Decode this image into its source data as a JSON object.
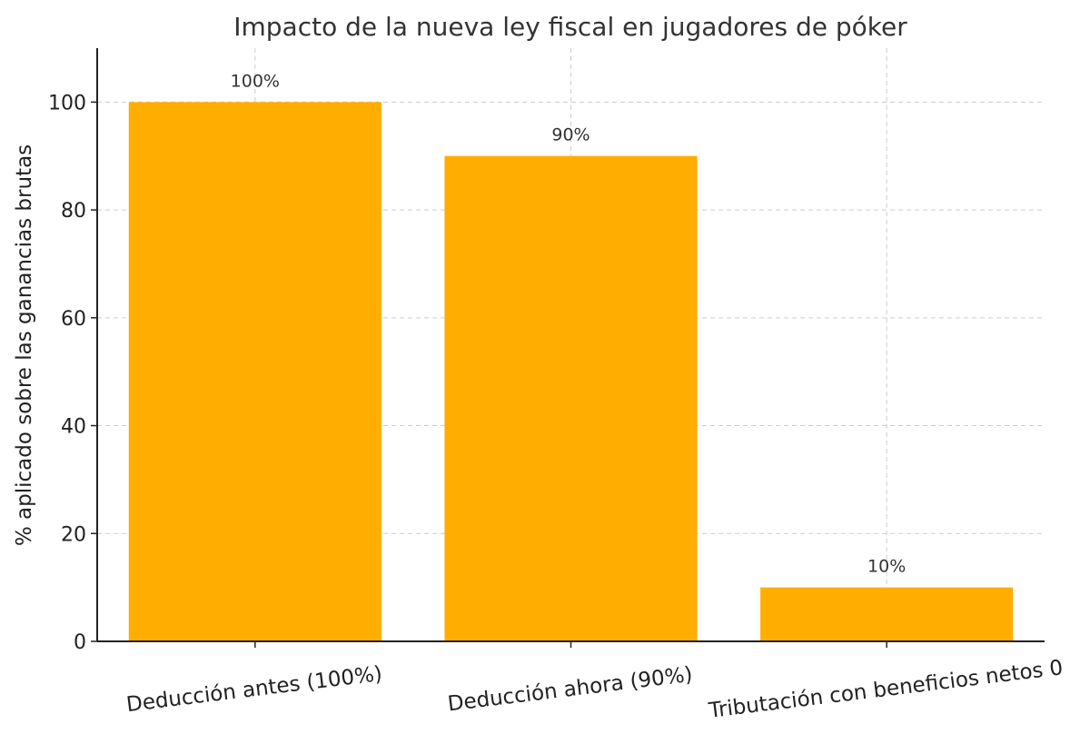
{
  "chart_data": {
    "type": "bar",
    "title": "Impacto de la nueva ley fiscal en jugadores de póker",
    "xlabel": "",
    "ylabel": "% aplicado sobre las ganancias brutas",
    "categories": [
      "Deducción antes (100%)",
      "Deducción ahora (90%)",
      "Tributación con beneficios netos 0"
    ],
    "values": [
      100,
      90,
      10
    ],
    "data_labels": [
      "100%",
      "90%",
      "10%"
    ],
    "ylim": [
      0,
      110
    ],
    "yticks": [
      0,
      20,
      40,
      60,
      80,
      100
    ],
    "grid": true,
    "bar_color": "#FFAE00"
  }
}
